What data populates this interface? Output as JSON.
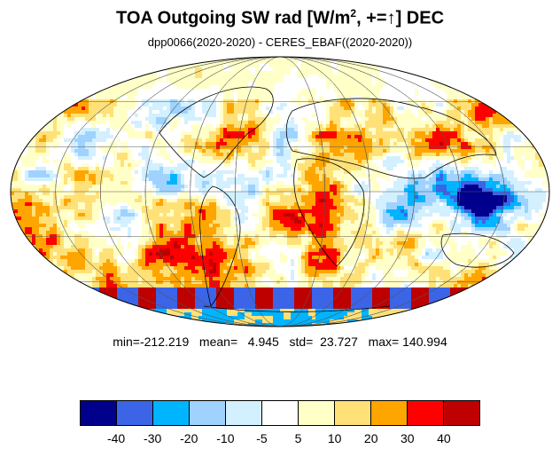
{
  "title": {
    "main": "TOA Outgoing SW rad [W/m",
    "sup": "2",
    "rest": ", +=",
    "arrow": "↑",
    "end": "] DEC"
  },
  "subtitle": "dpp0066(2020-2020) - CERES_EBAF((2020-2020))",
  "stats": "min=-212.219   mean=   4.945   std=  23.727   max= 140.994",
  "colorbar": {
    "colors": [
      "#00008c",
      "#3c64e6",
      "#00b4ff",
      "#a0d2ff",
      "#d2f0ff",
      "#ffffff",
      "#ffffc8",
      "#ffe178",
      "#ffa500",
      "#ff0000",
      "#be0000"
    ],
    "labels": [
      "-40",
      "-30",
      "-20",
      "-10",
      "-5",
      "5",
      "10",
      "20",
      "30",
      "40"
    ]
  },
  "map": {
    "projection": "mollweide",
    "graticule": true,
    "field_description_colors": [
      "#be0000",
      "#ff0000",
      "#ffa500",
      "#ffe178",
      "#ffffc8",
      "#ffffff",
      "#d2f0ff",
      "#a0d2ff",
      "#00b4ff",
      "#3c64e6",
      "#00008c"
    ]
  }
}
